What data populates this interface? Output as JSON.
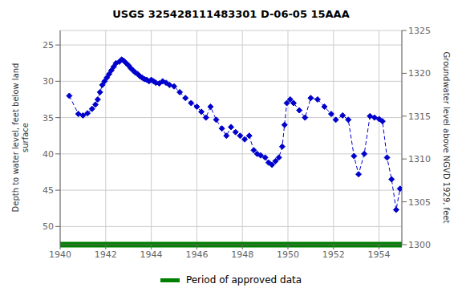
{
  "chart_data": {
    "type": "line",
    "title": "USGS 325428111483301 D-06-05 15AAA",
    "ylabel": "Depth to water level, feet below land\nsurface",
    "y2label": "Groundwater level above NGVD 1929, feet",
    "x": [
      1940.4,
      1940.8,
      1941.0,
      1941.2,
      1941.4,
      1941.55,
      1941.65,
      1941.75,
      1941.85,
      1941.95,
      1942.05,
      1942.15,
      1942.25,
      1942.35,
      1942.45,
      1942.6,
      1942.7,
      1942.8,
      1942.9,
      1943.0,
      1943.1,
      1943.2,
      1943.3,
      1943.4,
      1943.5,
      1943.6,
      1943.7,
      1943.8,
      1943.9,
      1944.0,
      1944.1,
      1944.2,
      1944.35,
      1944.5,
      1944.65,
      1944.8,
      1945.0,
      1945.25,
      1945.5,
      1945.75,
      1946.0,
      1946.2,
      1946.4,
      1946.6,
      1946.85,
      1947.1,
      1947.3,
      1947.5,
      1947.7,
      1947.9,
      1948.1,
      1948.3,
      1948.5,
      1948.65,
      1948.8,
      1949.0,
      1949.15,
      1949.3,
      1949.45,
      1949.6,
      1949.75,
      1949.85,
      1949.95,
      1950.1,
      1950.25,
      1950.5,
      1950.75,
      1951.0,
      1951.3,
      1951.6,
      1951.9,
      1952.1,
      1952.4,
      1952.65,
      1952.9,
      1953.1,
      1953.35,
      1953.6,
      1953.8,
      1954.0,
      1954.15,
      1954.35,
      1954.55,
      1954.75,
      1954.92
    ],
    "series": [
      {
        "color": "#0000cc",
        "marker": "diamond",
        "line_style": "dashed",
        "values": [
          32.0,
          34.5,
          34.7,
          34.4,
          33.8,
          33.2,
          32.5,
          31.5,
          30.5,
          30.0,
          29.5,
          29.0,
          28.5,
          28.0,
          27.5,
          27.3,
          27.0,
          27.2,
          27.5,
          27.8,
          28.2,
          28.5,
          28.8,
          29.0,
          29.3,
          29.5,
          29.7,
          29.8,
          30.0,
          29.8,
          30.0,
          30.2,
          30.3,
          30.0,
          30.2,
          30.5,
          30.7,
          31.5,
          32.3,
          33.0,
          33.5,
          34.2,
          35.0,
          33.5,
          35.3,
          36.5,
          37.5,
          36.3,
          37.0,
          37.5,
          38.0,
          37.5,
          39.5,
          40.0,
          40.2,
          40.5,
          41.2,
          41.5,
          41.0,
          40.5,
          39.0,
          36.0,
          33.0,
          32.5,
          33.0,
          34.0,
          35.0,
          32.3,
          32.5,
          33.5,
          34.5,
          35.3,
          34.7,
          35.3,
          40.3,
          42.8,
          40.0,
          34.8,
          35.0,
          35.2,
          35.5,
          40.5,
          43.5,
          47.7,
          44.8
        ]
      },
      {
        "name": "Period of approved data",
        "type": "band",
        "color": "#008000"
      }
    ],
    "xlim": [
      1940,
      1955
    ],
    "xticks": [
      1940,
      1942,
      1944,
      1946,
      1948,
      1950,
      1952,
      1954
    ],
    "ylim": [
      52.5,
      23.0
    ],
    "yticks": [
      25,
      30,
      35,
      40,
      45,
      50
    ],
    "y2lim": [
      1300,
      1325
    ],
    "y2ticks": [
      1300,
      1305,
      1310,
      1315,
      1320,
      1325
    ],
    "grid": true,
    "legend": "bottom"
  }
}
